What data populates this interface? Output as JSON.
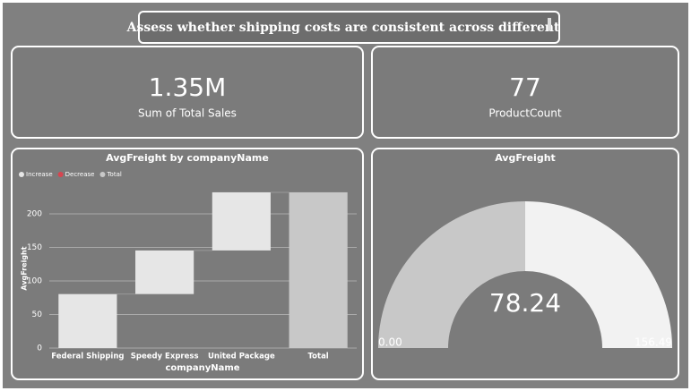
{
  "title": "Assess whether shipping costs are consistent across different",
  "cards": [
    {
      "value": "1.35M",
      "label": "Sum of Total Sales"
    },
    {
      "value": "77",
      "label": "ProductCount"
    }
  ],
  "chart_data": [
    {
      "type": "waterfall",
      "title": "AvgFreight by companyName",
      "categories": [
        "Federal Shipping",
        "Speedy Express",
        "United Package",
        "Total"
      ],
      "values": [
        80.44,
        65.0,
        86.64,
        232.08
      ],
      "legend": [
        {
          "name": "Increase",
          "color": "#e6e6e6"
        },
        {
          "name": "Decrease",
          "color": "#d64550"
        },
        {
          "name": "Total",
          "color": "#c8c8c8"
        }
      ],
      "x_label": "companyName",
      "y_label": "AvgFreight",
      "ylim": [
        0,
        240
      ],
      "yticks": [
        0,
        50,
        100,
        150,
        200
      ],
      "grid": true
    },
    {
      "type": "gauge",
      "title": "AvgFreight",
      "value": 78.24,
      "value_label": "78.24",
      "min": 0,
      "min_label": "0.00",
      "max": 156.49,
      "max_label": "156.49",
      "color": "#c8c8c8",
      "track_color": "#f2f2f2"
    }
  ]
}
